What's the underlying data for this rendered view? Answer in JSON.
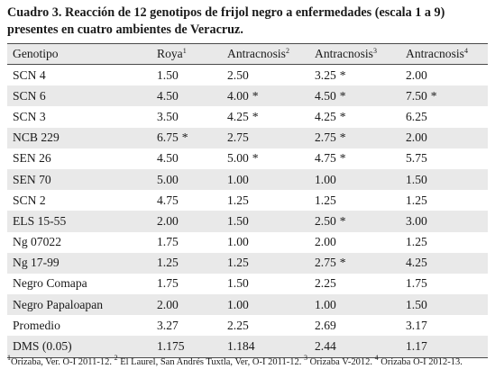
{
  "caption": "Cuadro 3. Reacción de 12 genotipos de frijol negro a enfermedades (escala 1 a 9) presentes en cuatro ambientes de Veracruz.",
  "headers": [
    {
      "label": "Genotipo",
      "sup": ""
    },
    {
      "label": "Roya",
      "sup": "1"
    },
    {
      "label": "Antracnosis",
      "sup": "2"
    },
    {
      "label": "Antracnosis",
      "sup": "3"
    },
    {
      "label": "Antracnosis",
      "sup": "4"
    }
  ],
  "rows": [
    {
      "genotipo": "SCN 4",
      "roya": "1.50",
      "roya_mark": "",
      "a2": "2.50",
      "a2_mark": "",
      "a3": "3.25",
      "a3_mark": "*",
      "a4": "2.00",
      "a4_mark": ""
    },
    {
      "genotipo": "SCN 6",
      "roya": "4.50",
      "roya_mark": "",
      "a2": "4.00",
      "a2_mark": "*",
      "a3": "4.50",
      "a3_mark": "*",
      "a4": "7.50",
      "a4_mark": "*"
    },
    {
      "genotipo": "SCN 3",
      "roya": "3.50",
      "roya_mark": "",
      "a2": "4.25",
      "a2_mark": "*",
      "a3": "4.25",
      "a3_mark": "*",
      "a4": "6.25",
      "a4_mark": ""
    },
    {
      "genotipo": "NCB 229",
      "roya": "6.75",
      "roya_mark": "*",
      "a2": "2.75",
      "a2_mark": "",
      "a3": "2.75",
      "a3_mark": "*",
      "a4": "2.00",
      "a4_mark": ""
    },
    {
      "genotipo": "SEN 26",
      "roya": "4.50",
      "roya_mark": "",
      "a2": "5.00",
      "a2_mark": "*",
      "a3": "4.75",
      "a3_mark": "*",
      "a4": "5.75",
      "a4_mark": ""
    },
    {
      "genotipo": "SEN 70",
      "roya": "5.00",
      "roya_mark": "",
      "a2": "1.00",
      "a2_mark": "",
      "a3": "1.00",
      "a3_mark": "",
      "a4": "1.50",
      "a4_mark": ""
    },
    {
      "genotipo": "SCN 2",
      "roya": "4.75",
      "roya_mark": "",
      "a2": "1.25",
      "a2_mark": "",
      "a3": "1.25",
      "a3_mark": "",
      "a4": "1.25",
      "a4_mark": ""
    },
    {
      "genotipo": "ELS 15-55",
      "roya": "2.00",
      "roya_mark": "",
      "a2": "1.50",
      "a2_mark": "",
      "a3": "2.50",
      "a3_mark": "*",
      "a4": "3.00",
      "a4_mark": ""
    },
    {
      "genotipo": "Ng 07022",
      "roya": "1.75",
      "roya_mark": "",
      "a2": "1.00",
      "a2_mark": "",
      "a3": "2.00",
      "a3_mark": "",
      "a4": "1.25",
      "a4_mark": ""
    },
    {
      "genotipo": "Ng 17-99",
      "roya": "1.25",
      "roya_mark": "",
      "a2": "1.25",
      "a2_mark": "",
      "a3": "2.75",
      "a3_mark": "*",
      "a4": "4.25",
      "a4_mark": ""
    },
    {
      "genotipo": "Negro Comapa",
      "roya": "1.75",
      "roya_mark": "",
      "a2": "1.50",
      "a2_mark": "",
      "a3": "2.25",
      "a3_mark": "",
      "a4": "1.75",
      "a4_mark": ""
    },
    {
      "genotipo": "Negro Papaloapan",
      "roya": "2.00",
      "roya_mark": "",
      "a2": "1.00",
      "a2_mark": "",
      "a3": "1.00",
      "a3_mark": "",
      "a4": "1.50",
      "a4_mark": ""
    },
    {
      "genotipo": "Promedio",
      "roya": "3.27",
      "roya_mark": "",
      "a2": "2.25",
      "a2_mark": "",
      "a3": "2.69",
      "a3_mark": "",
      "a4": "3.17",
      "a4_mark": ""
    },
    {
      "genotipo": "DMS (0.05)",
      "roya": "1.175",
      "roya_mark": "",
      "a2": "1.184",
      "a2_mark": "",
      "a3": "2.44",
      "a3_mark": "",
      "a4": "1.17",
      "a4_mark": ""
    }
  ],
  "footnote": [
    {
      "sup": "1",
      "text": "Orizaba, Ver. O-I 2011-12. "
    },
    {
      "sup": "2",
      "text": " El Laurel, San Andrés Tuxtla, Ver, O-I 2011-12. "
    },
    {
      "sup": "3",
      "text": " Orizaba V-2012. "
    },
    {
      "sup": "4",
      "text": " Orizaba O-I 2012-13."
    }
  ]
}
